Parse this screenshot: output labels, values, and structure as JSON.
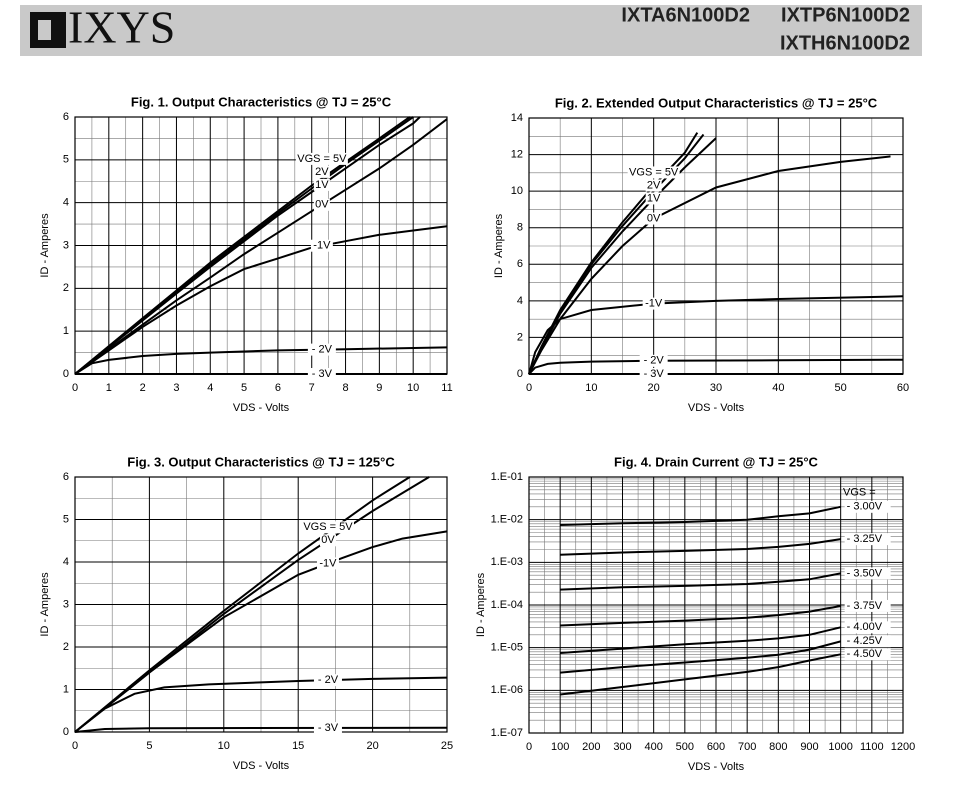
{
  "header": {
    "logo": "IXYS",
    "parts": [
      "IXTA6N100D2",
      "IXTP6N100D2",
      "IXTH6N100D2"
    ]
  },
  "chart_data": [
    {
      "type": "line",
      "title": "Fig. 1. Output Characteristics @ TJ = 25°C",
      "x_label": "VDS - Volts",
      "y_label": "ID - Amperes",
      "xlim": [
        0,
        11
      ],
      "xticks": [
        0,
        1,
        2,
        3,
        4,
        5,
        6,
        7,
        8,
        9,
        10,
        11
      ],
      "ylim": [
        0,
        6
      ],
      "yticks": [
        0,
        1,
        2,
        3,
        4,
        5,
        6
      ],
      "grid": true,
      "color": "#000000",
      "series": [
        {
          "name": "VGS = 5V",
          "x": [
            0,
            1,
            2,
            3,
            4,
            5,
            6,
            7,
            8,
            9,
            9.9
          ],
          "values": [
            0,
            0.65,
            1.3,
            1.95,
            2.6,
            3.2,
            3.8,
            4.4,
            4.95,
            5.5,
            6.0
          ]
        },
        {
          "name": "2V",
          "x": [
            0,
            1,
            2,
            3,
            4,
            5,
            6,
            7,
            8,
            9,
            10
          ],
          "values": [
            0,
            0.63,
            1.27,
            1.92,
            2.55,
            3.15,
            3.75,
            4.33,
            4.9,
            5.45,
            6.0
          ]
        },
        {
          "name": "1V",
          "x": [
            0,
            1,
            2,
            3,
            4,
            5,
            6,
            7,
            8,
            9,
            10,
            10.2
          ],
          "values": [
            0,
            0.62,
            1.25,
            1.88,
            2.5,
            3.1,
            3.7,
            4.25,
            4.8,
            5.35,
            5.85,
            6.0
          ]
        },
        {
          "name": "0V",
          "x": [
            0,
            1,
            2,
            3,
            4,
            5,
            6,
            7,
            8,
            9,
            10,
            11
          ],
          "values": [
            0,
            0.58,
            1.15,
            1.72,
            2.25,
            2.8,
            3.3,
            3.8,
            4.3,
            4.8,
            5.35,
            5.95
          ]
        },
        {
          "name": "-1V",
          "x": [
            0,
            1,
            2,
            3,
            4,
            5,
            6,
            7,
            8,
            9,
            10,
            11
          ],
          "values": [
            0,
            0.55,
            1.1,
            1.6,
            2.05,
            2.45,
            2.7,
            2.95,
            3.1,
            3.25,
            3.35,
            3.45
          ]
        },
        {
          "name": "- 2V",
          "x": [
            0,
            0.5,
            1,
            2,
            3,
            4,
            6,
            8,
            11
          ],
          "values": [
            0,
            0.25,
            0.33,
            0.42,
            0.47,
            0.5,
            0.55,
            0.58,
            0.62
          ]
        },
        {
          "name": "- 3V",
          "x": [
            0,
            11
          ],
          "values": [
            0,
            0
          ]
        }
      ]
    },
    {
      "type": "line",
      "title": "Fig. 2. Extended Output Characteristics @ TJ = 25°C",
      "x_label": "VDS - Volts",
      "y_label": "ID - Amperes",
      "xlim": [
        0,
        60
      ],
      "xticks": [
        0,
        10,
        20,
        30,
        40,
        50,
        60
      ],
      "ylim": [
        0,
        14
      ],
      "yticks": [
        0,
        2,
        4,
        6,
        8,
        10,
        12,
        14
      ],
      "grid": true,
      "color": "#000000",
      "series": [
        {
          "name": "VGS = 5V",
          "x": [
            0,
            2,
            5,
            10,
            15,
            20,
            25,
            27
          ],
          "values": [
            0,
            1.5,
            3.5,
            6.1,
            8.3,
            10.3,
            12.1,
            13.2
          ]
        },
        {
          "name": "2V",
          "x": [
            0,
            2,
            5,
            10,
            15,
            20,
            25,
            28
          ],
          "values": [
            0,
            1.45,
            3.4,
            6.0,
            8.1,
            10.0,
            11.8,
            13.1
          ]
        },
        {
          "name": "1V",
          "x": [
            0,
            2,
            5,
            10,
            15,
            20,
            25,
            30
          ],
          "values": [
            0,
            1.4,
            3.3,
            5.8,
            7.8,
            9.6,
            11.3,
            12.9
          ]
        },
        {
          "name": "0V",
          "x": [
            0,
            2,
            5,
            10,
            15,
            20,
            30,
            40,
            50,
            58
          ],
          "values": [
            0,
            1.3,
            3.0,
            5.2,
            7.0,
            8.5,
            10.2,
            11.1,
            11.6,
            11.9
          ]
        },
        {
          "name": "-1V",
          "x": [
            0,
            1,
            3,
            5,
            10,
            20,
            30,
            40,
            60
          ],
          "values": [
            0,
            1.2,
            2.4,
            3.0,
            3.5,
            3.85,
            4.0,
            4.1,
            4.25
          ]
        },
        {
          "name": "- 2V",
          "x": [
            0,
            1,
            3,
            5,
            10,
            20,
            40,
            60
          ],
          "values": [
            0,
            0.35,
            0.55,
            0.62,
            0.68,
            0.72,
            0.75,
            0.78
          ]
        },
        {
          "name": "- 3V",
          "x": [
            0,
            60
          ],
          "values": [
            0,
            0
          ]
        }
      ]
    },
    {
      "type": "line",
      "title": "Fig. 3. Output Characteristics @ TJ = 125°C",
      "x_label": "VDS - Volts",
      "y_label": "ID - Amperes",
      "xlim": [
        0,
        25
      ],
      "xticks": [
        0,
        5,
        10,
        15,
        20,
        25
      ],
      "ylim": [
        0,
        6
      ],
      "yticks": [
        0,
        1,
        2,
        3,
        4,
        5,
        6
      ],
      "grid": true,
      "color": "#000000",
      "series": [
        {
          "name": "VGS = 5V",
          "x": [
            0,
            5,
            10,
            15,
            20,
            22.5
          ],
          "values": [
            0,
            1.45,
            2.85,
            4.2,
            5.45,
            6.0
          ]
        },
        {
          "name": "0V",
          "x": [
            0,
            5,
            10,
            15,
            20,
            23.8
          ],
          "values": [
            0,
            1.4,
            2.78,
            4.05,
            5.2,
            6.0
          ]
        },
        {
          "name": "-1V",
          "x": [
            0,
            5,
            10,
            15,
            18,
            20,
            22,
            25
          ],
          "values": [
            0,
            1.4,
            2.7,
            3.7,
            4.1,
            4.35,
            4.55,
            4.72
          ]
        },
        {
          "name": "- 2V",
          "x": [
            0,
            2,
            4,
            6,
            9,
            15,
            20,
            25
          ],
          "values": [
            0,
            0.55,
            0.9,
            1.05,
            1.12,
            1.2,
            1.25,
            1.28
          ]
        },
        {
          "name": "- 3V",
          "x": [
            0,
            2,
            5,
            25
          ],
          "values": [
            0,
            0.07,
            0.09,
            0.1
          ]
        }
      ]
    },
    {
      "type": "line",
      "title": "Fig. 4. Drain Current @ TJ = 25°C",
      "x_label": "VDS - Volts",
      "y_label": "ID - Amperes",
      "xlim": [
        0,
        1200
      ],
      "xticks": [
        0,
        100,
        200,
        300,
        400,
        500,
        600,
        700,
        800,
        900,
        1000,
        1100,
        1200
      ],
      "ylim": [
        1e-07,
        0.1
      ],
      "yscale": "log",
      "grid": true,
      "color": "#000000",
      "legend_title": "VGS =",
      "yticks": [
        {
          "value": 1e-07,
          "label": "1.E-07"
        },
        {
          "value": 1e-06,
          "label": "1.E-06"
        },
        {
          "value": 1e-05,
          "label": "1.E-05"
        },
        {
          "value": 0.0001,
          "label": "1.E-04"
        },
        {
          "value": 0.001,
          "label": "1.E-03"
        },
        {
          "value": 0.01,
          "label": "1.E-02"
        },
        {
          "value": 0.1,
          "label": "1.E-01"
        }
      ],
      "series": [
        {
          "name": "- 3.00V",
          "x": [
            100,
            300,
            500,
            700,
            800,
            900,
            1000
          ],
          "values": [
            0.0075,
            0.0082,
            0.0088,
            0.01,
            0.012,
            0.014,
            0.02
          ]
        },
        {
          "name": "- 3.25V",
          "x": [
            100,
            300,
            500,
            700,
            800,
            900,
            1000
          ],
          "values": [
            0.0015,
            0.0017,
            0.00185,
            0.00205,
            0.0023,
            0.0027,
            0.0035
          ]
        },
        {
          "name": "- 3.50V",
          "x": [
            100,
            300,
            500,
            700,
            800,
            900,
            1000
          ],
          "values": [
            0.00023,
            0.00026,
            0.00028,
            0.00031,
            0.00035,
            0.0004,
            0.00055
          ]
        },
        {
          "name": "- 3.75V",
          "x": [
            100,
            300,
            500,
            700,
            800,
            900,
            1000
          ],
          "values": [
            3.3e-05,
            3.8e-05,
            4.3e-05,
            5e-05,
            5.8e-05,
            7e-05,
            9.5e-05
          ]
        },
        {
          "name": "- 4.00V",
          "x": [
            100,
            300,
            500,
            700,
            800,
            900,
            1000
          ],
          "values": [
            7.5e-06,
            9.5e-06,
            1.2e-05,
            1.45e-05,
            1.65e-05,
            2e-05,
            3e-05
          ]
        },
        {
          "name": "- 4.25V",
          "x": [
            100,
            300,
            500,
            700,
            800,
            900,
            1000
          ],
          "values": [
            2.6e-06,
            3.5e-06,
            4.5e-06,
            5.8e-06,
            6.8e-06,
            9e-06,
            1.4e-05
          ]
        },
        {
          "name": "- 4.50V",
          "x": [
            100,
            300,
            500,
            700,
            800,
            900,
            1000
          ],
          "values": [
            8e-07,
            1.2e-06,
            1.8e-06,
            2.7e-06,
            3.5e-06,
            5e-06,
            7e-06
          ]
        }
      ]
    }
  ]
}
